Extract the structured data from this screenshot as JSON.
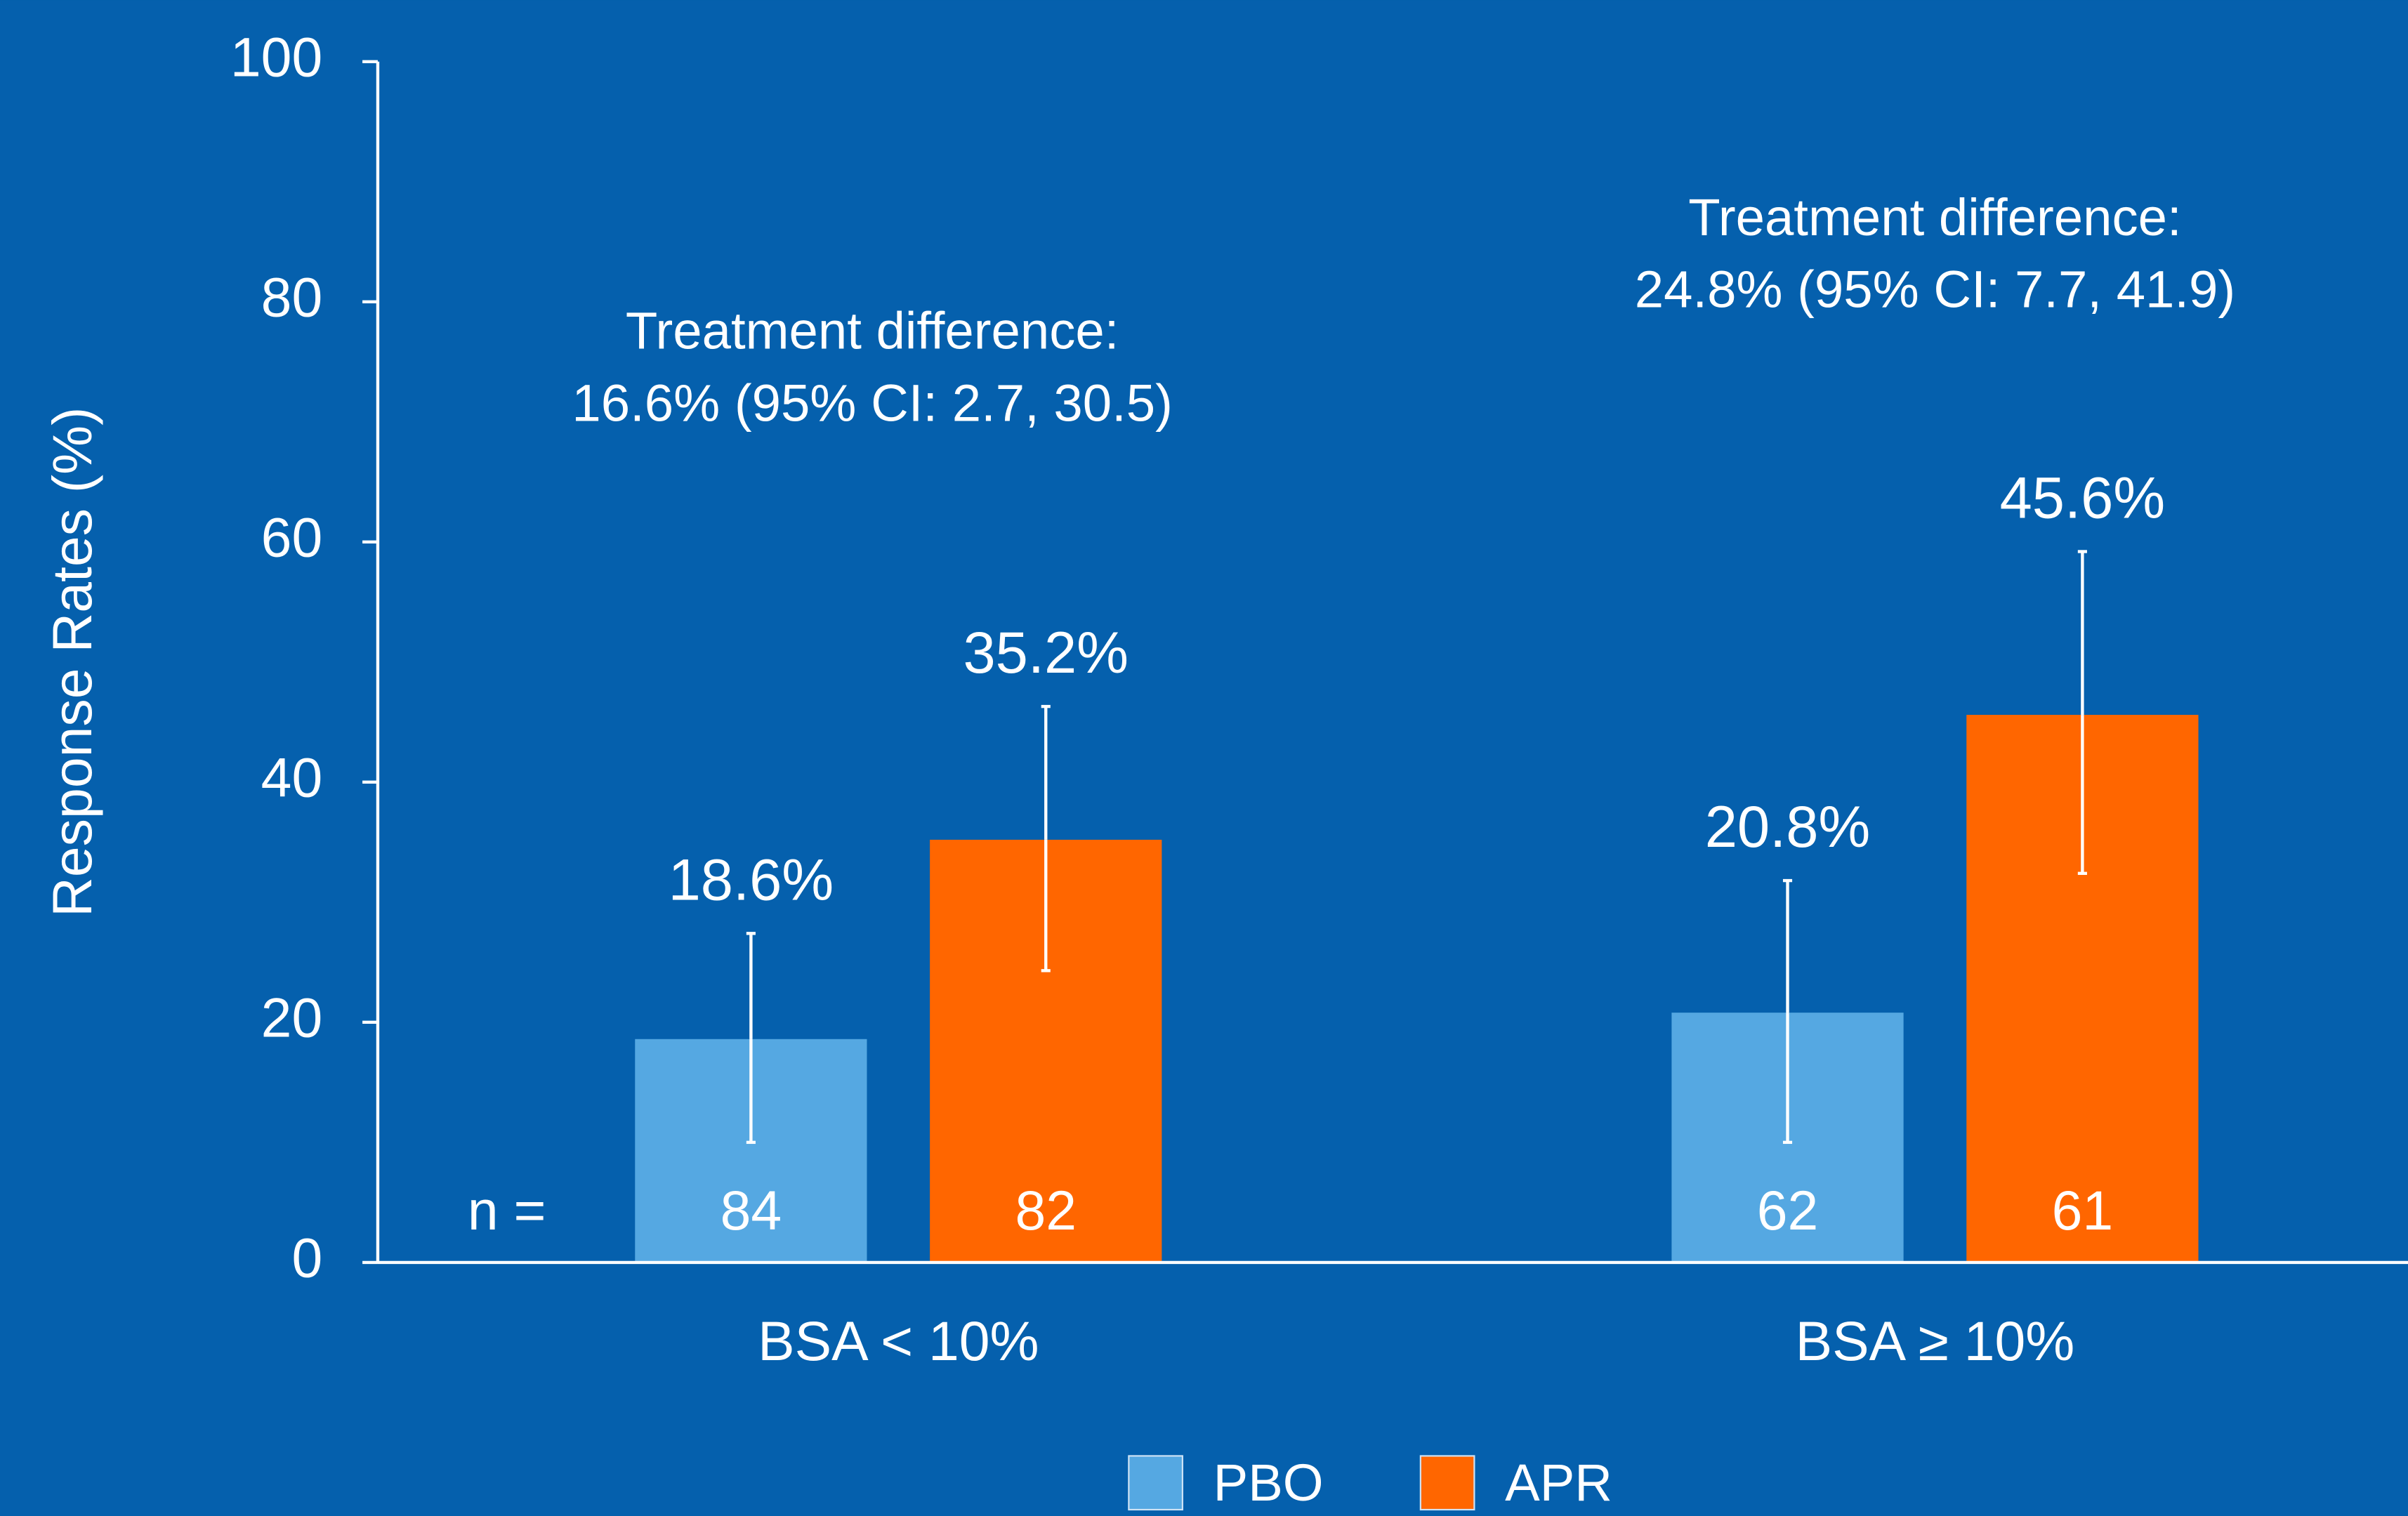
{
  "chart_data": {
    "type": "bar",
    "categories": [
      "BSA < 10%",
      "BSA ≥ 10%"
    ],
    "y_label": "Response Rates (%)",
    "n_label": "n =",
    "annotations": [
      [
        "Treatment difference:",
        "16.6% (95% CI: 2.7, 30.5)"
      ],
      [
        "Treatment difference:",
        "24.8% (95% CI: 7.7, 41.9)"
      ]
    ],
    "series": [
      {
        "name": "PBO",
        "color": "#55a8e2",
        "values": [
          18.6,
          20.8
        ],
        "value_labels": [
          "18.6%",
          "20.8%"
        ],
        "error_lower": [
          8.6,
          10.8
        ],
        "error_upper": [
          8.8,
          11.0
        ],
        "n": [
          84,
          62
        ]
      },
      {
        "name": "APR",
        "color": "#ff6600",
        "values": [
          35.2,
          45.6
        ],
        "value_labels": [
          "35.2%",
          "45.6%"
        ],
        "error_lower": [
          10.9,
          13.2
        ],
        "error_upper": [
          11.1,
          13.6
        ],
        "n": [
          82,
          61
        ]
      }
    ],
    "ylim": [
      0,
      100
    ],
    "yticks": [
      0,
      20,
      40,
      60,
      80,
      100
    ],
    "legend": "bottom"
  }
}
